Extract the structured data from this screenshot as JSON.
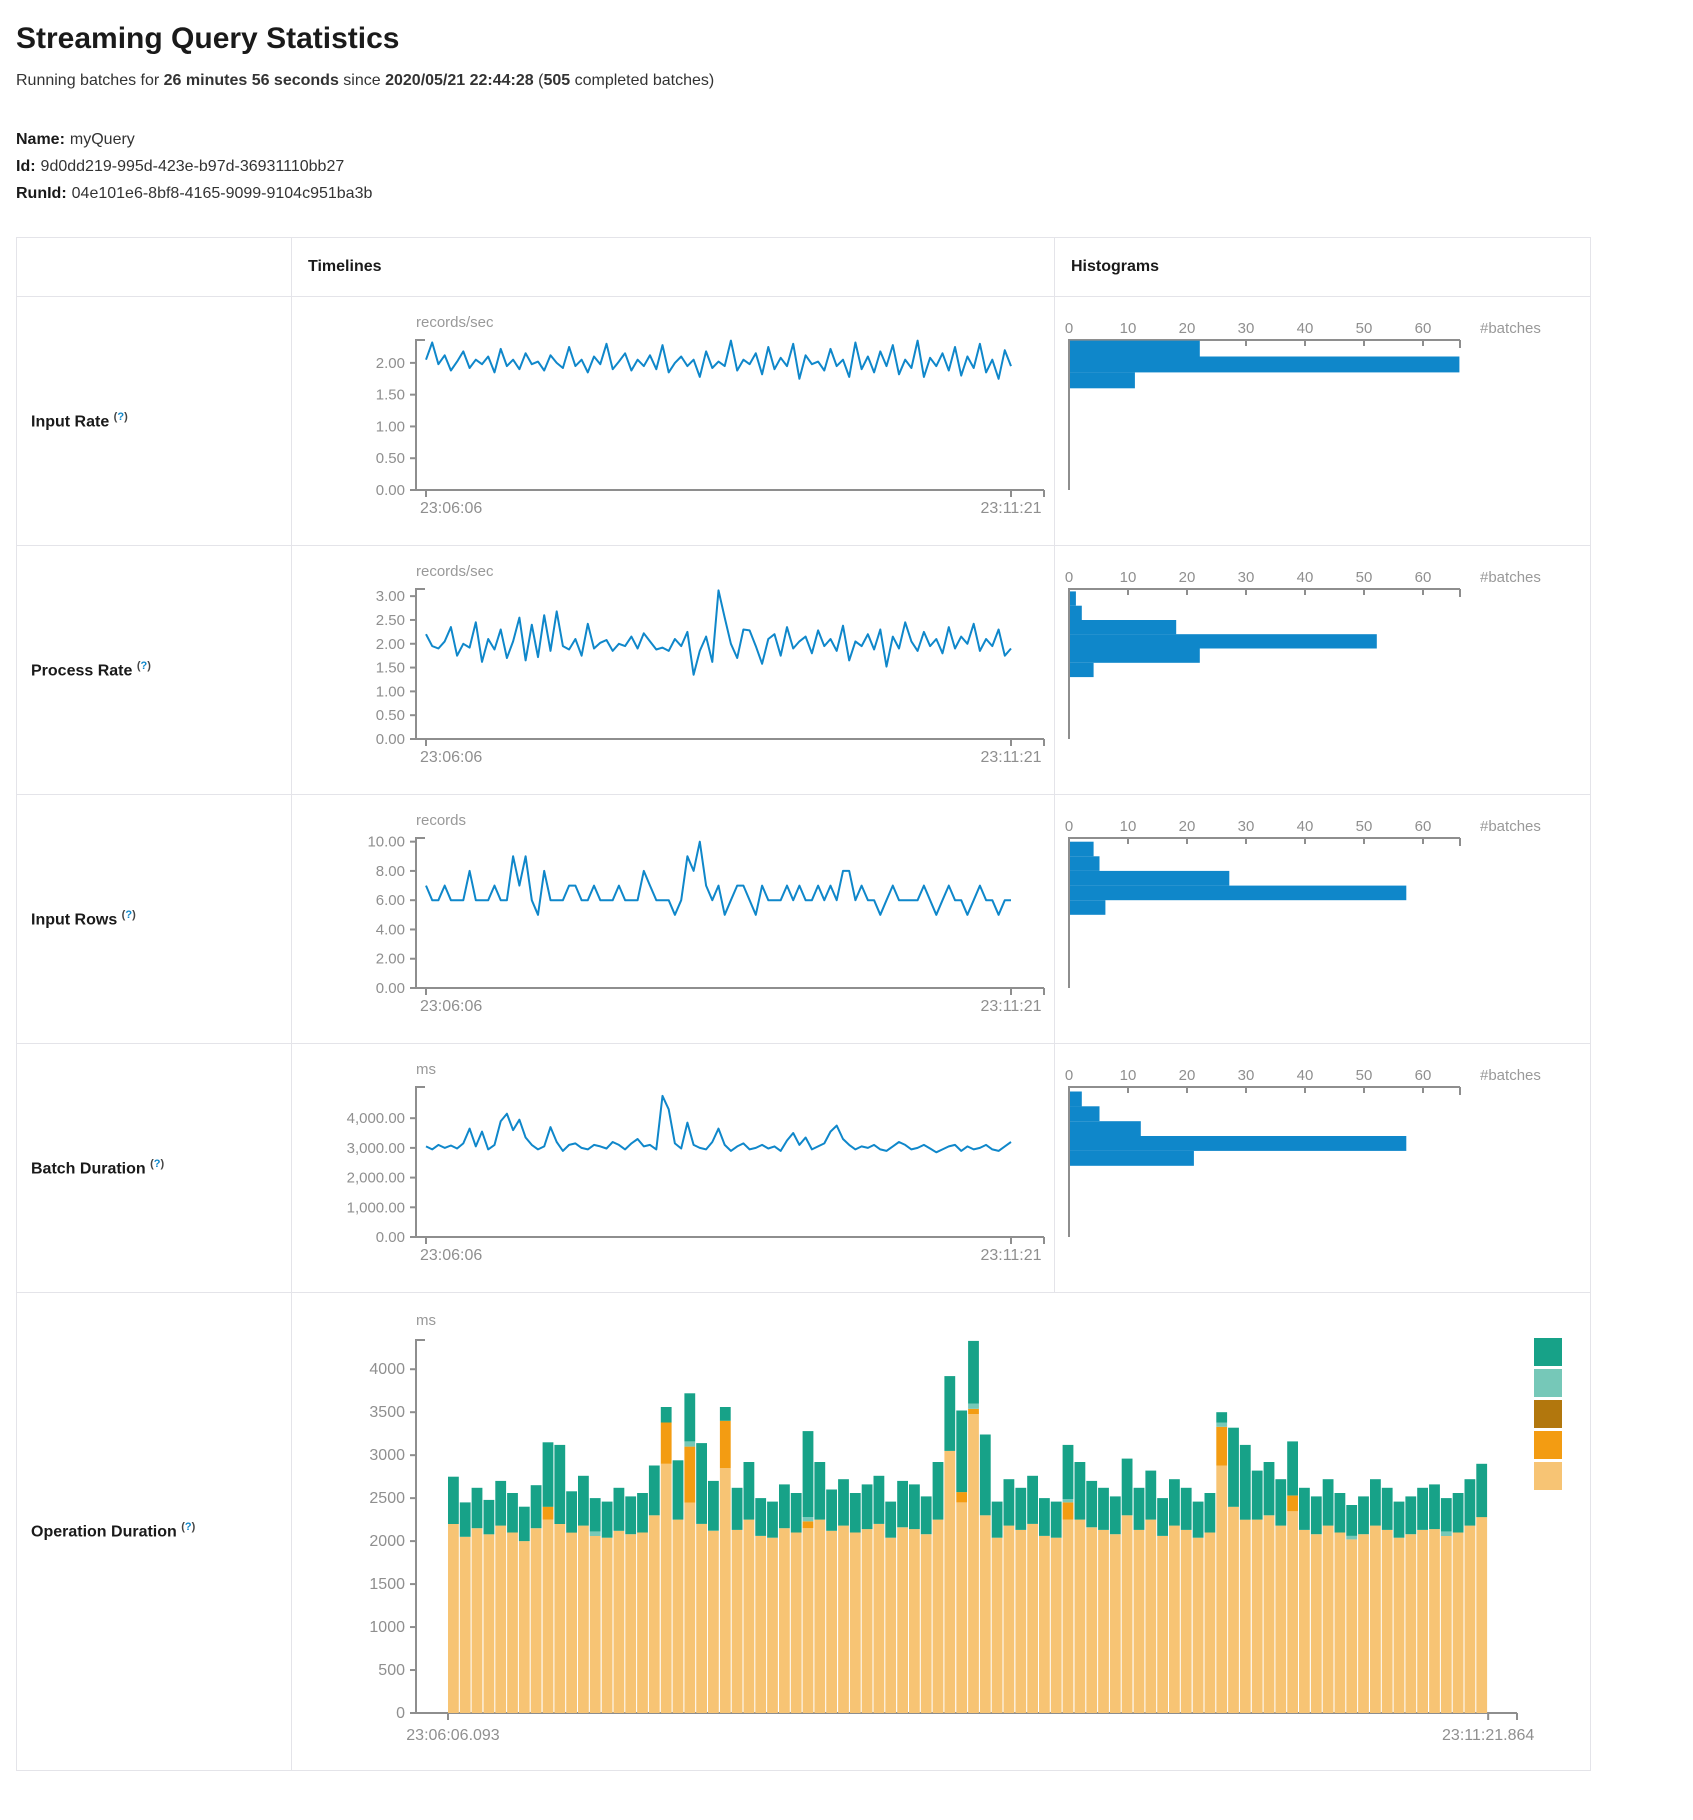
{
  "page": {
    "title": "Streaming Query Statistics",
    "subtitle": {
      "p1": "Running batches for ",
      "duration": "26 minutes 56 seconds",
      "p2": " since ",
      "since": "2020/05/21 22:44:28",
      "p3": " (",
      "batches": "505",
      "p4": " completed batches)"
    },
    "meta": [
      {
        "label": "Name:",
        "value": "myQuery"
      },
      {
        "label": "Id:",
        "value": "9d0dd219-995d-423e-b97d-36931110bb27"
      },
      {
        "label": "RunId:",
        "value": "04e101e6-8bf8-4165-9099-9104c951ba3b"
      }
    ]
  },
  "table": {
    "col_timelines": "Timelines",
    "col_histograms": "Histograms",
    "help": {
      "open": "(",
      "q": "?",
      "close": ")"
    }
  },
  "colors": {
    "blue": "#0f87ca",
    "axis": "#8e8e8e",
    "tick_text": "#8f8f8f",
    "muted": "#999999",
    "teal": "#17a288",
    "lightteal": "#76c8b8",
    "gold": "#b2770d",
    "orange": "#f39c12",
    "tan": "#f7c474",
    "border": "#e4e4e9"
  },
  "chart_data": [
    {
      "id": "input-rate",
      "title": "Input Rate",
      "type": "line",
      "unit": "records/sec",
      "ylim": [
        0,
        2.36
      ],
      "ytick_values": [
        0,
        0.5,
        1,
        1.5,
        2
      ],
      "ytick_labels": [
        "0.00",
        "0.50",
        "1.00",
        "1.50",
        "2.00"
      ],
      "x_start": "23:06:06",
      "x_end": "23:11:21",
      "values": [
        2.05,
        2.32,
        1.98,
        2.12,
        1.88,
        2.02,
        2.18,
        1.92,
        2.05,
        1.98,
        2.1,
        1.85,
        2.22,
        1.95,
        2.05,
        1.9,
        2.15,
        1.98,
        2.02,
        1.88,
        2.12,
        2.0,
        1.92,
        2.25,
        1.95,
        2.05,
        1.85,
        2.1,
        1.98,
        2.3,
        1.9,
        2.02,
        2.15,
        1.88,
        2.05,
        1.95,
        2.12,
        1.9,
        2.28,
        1.85,
        2.0,
        2.1,
        1.95,
        2.05,
        1.78,
        2.18,
        1.92,
        2.02,
        1.95,
        2.35,
        1.88,
        2.05,
        1.98,
        2.15,
        1.82,
        2.25,
        1.9,
        2.08,
        1.95,
        2.3,
        1.75,
        2.12,
        1.98,
        2.02,
        1.88,
        2.22,
        1.95,
        2.05,
        1.78,
        2.32,
        1.9,
        2.1,
        1.85,
        2.18,
        1.95,
        2.28,
        1.82,
        2.05,
        1.92,
        2.35,
        1.78,
        2.08,
        1.95,
        2.15,
        1.88,
        2.25,
        1.8,
        2.1,
        1.92,
        2.3,
        1.85,
        2.05,
        1.75,
        2.2,
        1.95
      ],
      "histogram": {
        "xlabel": "#batches",
        "xtick_values": [
          0,
          10,
          20,
          30,
          40,
          50,
          60
        ],
        "xtick_labels": [
          "0",
          "10",
          "20",
          "30",
          "40",
          "50",
          "60"
        ],
        "bins": [
          {
            "lo": 2.1,
            "hi": 2.35,
            "count": 22
          },
          {
            "lo": 1.85,
            "hi": 2.1,
            "count": 66
          },
          {
            "lo": 1.6,
            "hi": 1.85,
            "count": 11
          }
        ]
      }
    },
    {
      "id": "process-rate",
      "title": "Process Rate",
      "type": "line",
      "unit": "records/sec",
      "ylim": [
        0,
        3.15
      ],
      "ytick_values": [
        0,
        0.5,
        1,
        1.5,
        2,
        2.5,
        3
      ],
      "ytick_labels": [
        "0.00",
        "0.50",
        "1.00",
        "1.50",
        "2.00",
        "2.50",
        "3.00"
      ],
      "x_start": "23:06:06",
      "x_end": "23:11:21",
      "values": [
        2.2,
        1.95,
        1.9,
        2.05,
        2.35,
        1.75,
        2.0,
        1.92,
        2.45,
        1.62,
        2.1,
        1.88,
        2.3,
        1.7,
        2.05,
        2.55,
        1.65,
        2.4,
        1.72,
        2.6,
        1.85,
        2.68,
        1.95,
        1.88,
        2.1,
        1.75,
        2.42,
        1.9,
        2.02,
        2.08,
        1.85,
        2.0,
        1.95,
        2.15,
        1.9,
        2.22,
        2.05,
        1.88,
        1.92,
        1.85,
        2.1,
        1.95,
        2.25,
        1.35,
        1.85,
        2.15,
        1.62,
        3.12,
        2.55,
        2.0,
        1.7,
        2.3,
        2.28,
        1.95,
        1.58,
        2.1,
        2.2,
        1.75,
        2.35,
        1.9,
        2.05,
        2.15,
        1.8,
        2.28,
        1.95,
        2.1,
        1.85,
        2.38,
        1.65,
        2.05,
        1.95,
        2.2,
        1.88,
        2.3,
        1.52,
        2.15,
        1.9,
        2.45,
        2.05,
        1.85,
        2.25,
        1.95,
        2.1,
        1.8,
        2.35,
        1.9,
        2.15,
        2.0,
        2.42,
        1.85,
        2.1,
        1.95,
        2.3,
        1.75,
        1.9
      ],
      "histogram": {
        "xlabel": "#batches",
        "xtick_values": [
          0,
          10,
          20,
          30,
          40,
          50,
          60
        ],
        "xtick_labels": [
          "0",
          "10",
          "20",
          "30",
          "40",
          "50",
          "60"
        ],
        "bins": [
          {
            "lo": 2.8,
            "hi": 3.1,
            "count": 1
          },
          {
            "lo": 2.5,
            "hi": 2.8,
            "count": 2
          },
          {
            "lo": 2.2,
            "hi": 2.5,
            "count": 18
          },
          {
            "lo": 1.9,
            "hi": 2.2,
            "count": 52
          },
          {
            "lo": 1.6,
            "hi": 1.9,
            "count": 22
          },
          {
            "lo": 1.3,
            "hi": 1.6,
            "count": 4
          }
        ]
      }
    },
    {
      "id": "input-rows",
      "title": "Input Rows",
      "type": "line",
      "unit": "records",
      "ylim": [
        0,
        10.25
      ],
      "ytick_values": [
        0,
        2,
        4,
        6,
        8,
        10
      ],
      "ytick_labels": [
        "0.00",
        "2.00",
        "4.00",
        "6.00",
        "8.00",
        "10.00"
      ],
      "x_start": "23:06:06",
      "x_end": "23:11:21",
      "values": [
        7,
        6,
        6,
        7,
        6,
        6,
        6,
        8,
        6,
        6,
        6,
        7,
        6,
        6,
        9,
        7,
        9,
        6,
        5,
        8,
        6,
        6,
        6,
        7,
        7,
        6,
        6,
        7,
        6,
        6,
        6,
        7,
        6,
        6,
        6,
        8,
        7,
        6,
        6,
        6,
        5,
        6,
        9,
        8,
        10,
        7,
        6,
        7,
        5,
        6,
        7,
        7,
        6,
        5,
        7,
        6,
        6,
        6,
        7,
        6,
        7,
        6,
        6,
        7,
        6,
        7,
        6,
        8,
        8,
        6,
        7,
        6,
        6,
        5,
        6,
        7,
        6,
        6,
        6,
        6,
        7,
        6,
        5,
        6,
        7,
        6,
        6,
        5,
        6,
        7,
        6,
        6,
        5,
        6,
        6
      ],
      "histogram": {
        "xlabel": "#batches",
        "xtick_values": [
          0,
          10,
          20,
          30,
          40,
          50,
          60
        ],
        "xtick_labels": [
          "0",
          "10",
          "20",
          "30",
          "40",
          "50",
          "60"
        ],
        "bins": [
          {
            "lo": 9,
            "hi": 10,
            "count": 4
          },
          {
            "lo": 8,
            "hi": 9,
            "count": 5
          },
          {
            "lo": 7,
            "hi": 8,
            "count": 27
          },
          {
            "lo": 6,
            "hi": 7,
            "count": 57
          },
          {
            "lo": 5,
            "hi": 6,
            "count": 6
          }
        ]
      }
    },
    {
      "id": "batch-duration",
      "title": "Batch Duration",
      "type": "line",
      "unit": "ms",
      "ylim": [
        0,
        5050
      ],
      "ytick_values": [
        0,
        1000,
        2000,
        3000,
        4000
      ],
      "ytick_labels": [
        "0.00",
        "1,000.00",
        "2,000.00",
        "3,000.00",
        "4,000.00"
      ],
      "x_start": "23:06:06",
      "x_end": "23:11:21",
      "values": [
        3050,
        2950,
        3100,
        3000,
        3080,
        2980,
        3150,
        3650,
        3050,
        3550,
        2950,
        3100,
        3900,
        4150,
        3600,
        3950,
        3350,
        3100,
        2950,
        3050,
        3700,
        3200,
        2900,
        3100,
        3150,
        3000,
        2950,
        3100,
        3050,
        2980,
        3200,
        3100,
        2950,
        3150,
        3300,
        3050,
        3100,
        2950,
        4750,
        4300,
        3150,
        2980,
        3850,
        3100,
        3000,
        2950,
        3200,
        3650,
        3100,
        2900,
        3050,
        3150,
        2950,
        3000,
        3100,
        2980,
        3050,
        2900,
        3250,
        3500,
        3100,
        3350,
        2950,
        3050,
        3150,
        3550,
        3750,
        3300,
        3100,
        2950,
        3050,
        3000,
        3100,
        2950,
        2900,
        3050,
        3200,
        3100,
        2950,
        3000,
        3100,
        2980,
        2850,
        2950,
        3050,
        3100,
        2900,
        3050,
        2950,
        3000,
        3100,
        2950,
        2900,
        3050,
        3200
      ],
      "histogram": {
        "xlabel": "#batches",
        "xtick_values": [
          0,
          10,
          20,
          30,
          40,
          50,
          60
        ],
        "xtick_labels": [
          "0",
          "10",
          "20",
          "30",
          "40",
          "50",
          "60"
        ],
        "bins": [
          {
            "lo": 4400,
            "hi": 4900,
            "count": 2
          },
          {
            "lo": 3900,
            "hi": 4400,
            "count": 5
          },
          {
            "lo": 3400,
            "hi": 3900,
            "count": 12
          },
          {
            "lo": 2900,
            "hi": 3400,
            "count": 57
          },
          {
            "lo": 2400,
            "hi": 2900,
            "count": 21
          }
        ]
      }
    },
    {
      "id": "operation-duration",
      "title": "Operation Duration",
      "type": "stacked-bar",
      "unit": "ms",
      "ylim": [
        0,
        4340
      ],
      "ytick_values": [
        0,
        500,
        1000,
        1500,
        2000,
        2500,
        3000,
        3500,
        4000
      ],
      "ytick_labels": [
        "0",
        "500",
        "1000",
        "1500",
        "2000",
        "2500",
        "3000",
        "3500",
        "4000"
      ],
      "x_start": "23:06:06.093",
      "x_end": "23:11:21.864",
      "legend_labels_visible": false,
      "legend_colors": [
        "#17a288",
        "#76c8b8",
        "#b2770d",
        "#f39c12",
        "#f7c474"
      ],
      "series": [
        {
          "name": "stack-segment-tan",
          "color": "#f7c474",
          "values": [
            2200,
            2050,
            2150,
            2080,
            2180,
            2100,
            2000,
            2150,
            2250,
            2200,
            2100,
            2180,
            2060,
            2040,
            2120,
            2080,
            2100,
            2300,
            2900,
            2250,
            2450,
            2200,
            2120,
            2850,
            2130,
            2250,
            2060,
            2040,
            2150,
            2100,
            2150,
            2250,
            2120,
            2180,
            2100,
            2140,
            2200,
            2040,
            2160,
            2140,
            2080,
            2250,
            3050,
            2450,
            3480,
            2300,
            2040,
            2180,
            2130,
            2200,
            2060,
            2040,
            2250,
            2250,
            2160,
            2130,
            2080,
            2300,
            2130,
            2250,
            2060,
            2180,
            2130,
            2040,
            2100,
            2880,
            2400,
            2250,
            2250,
            2300,
            2180,
            2350,
            2130,
            2080,
            2180,
            2100,
            2020,
            2080,
            2180,
            2130,
            2040,
            2080,
            2130,
            2140,
            2060,
            2100,
            2180,
            2280
          ]
        },
        {
          "name": "stack-segment-orange",
          "color": "#f39c12",
          "values": [
            0,
            0,
            0,
            0,
            0,
            0,
            0,
            0,
            150,
            0,
            0,
            0,
            0,
            0,
            0,
            0,
            0,
            0,
            480,
            0,
            650,
            0,
            0,
            550,
            0,
            0,
            0,
            0,
            0,
            0,
            80,
            0,
            0,
            0,
            0,
            0,
            0,
            0,
            0,
            0,
            0,
            0,
            0,
            120,
            60,
            0,
            0,
            0,
            0,
            0,
            0,
            0,
            200,
            0,
            0,
            0,
            0,
            0,
            0,
            0,
            0,
            0,
            0,
            0,
            0,
            450,
            0,
            0,
            0,
            0,
            0,
            180,
            0,
            0,
            0,
            0,
            0,
            0,
            0,
            0,
            0,
            0,
            0,
            0,
            0,
            0,
            0,
            0
          ]
        },
        {
          "name": "stack-segment-gold",
          "color": "#b2770d",
          "values": [
            0,
            0,
            0,
            0,
            0,
            0,
            0,
            0,
            0,
            0,
            0,
            0,
            0,
            0,
            0,
            0,
            0,
            0,
            0,
            0,
            0,
            0,
            0,
            0,
            0,
            0,
            0,
            0,
            0,
            0,
            0,
            0,
            0,
            0,
            0,
            0,
            0,
            0,
            0,
            0,
            0,
            0,
            0,
            0,
            0,
            0,
            0,
            0,
            0,
            0,
            0,
            0,
            0,
            0,
            0,
            0,
            0,
            0,
            0,
            0,
            0,
            0,
            0,
            0,
            0,
            0,
            0,
            0,
            0,
            0,
            0,
            0,
            0,
            0,
            0,
            0,
            0,
            0,
            0,
            0,
            0,
            0,
            0,
            0,
            0,
            0,
            0,
            0
          ]
        },
        {
          "name": "stack-segment-lightteal",
          "color": "#76c8b8",
          "values": [
            0,
            0,
            0,
            0,
            0,
            0,
            0,
            0,
            0,
            0,
            0,
            0,
            50,
            0,
            0,
            0,
            0,
            0,
            0,
            0,
            60,
            0,
            0,
            0,
            0,
            0,
            0,
            0,
            0,
            0,
            50,
            0,
            0,
            0,
            0,
            0,
            0,
            0,
            0,
            0,
            0,
            0,
            0,
            0,
            60,
            0,
            0,
            0,
            0,
            0,
            0,
            0,
            40,
            0,
            0,
            0,
            0,
            0,
            0,
            0,
            0,
            0,
            0,
            0,
            0,
            50,
            0,
            0,
            0,
            0,
            0,
            0,
            0,
            0,
            0,
            0,
            40,
            0,
            0,
            0,
            0,
            0,
            0,
            0,
            50,
            0,
            0,
            0
          ]
        },
        {
          "name": "stack-segment-teal",
          "color": "#17a288",
          "values": [
            550,
            400,
            470,
            400,
            520,
            460,
            400,
            500,
            750,
            920,
            480,
            580,
            390,
            420,
            500,
            440,
            460,
            580,
            180,
            690,
            560,
            940,
            580,
            160,
            490,
            670,
            440,
            420,
            510,
            460,
            1000,
            670,
            480,
            540,
            460,
            520,
            560,
            420,
            540,
            520,
            440,
            670,
            870,
            950,
            730,
            940,
            420,
            540,
            490,
            560,
            440,
            420,
            630,
            670,
            540,
            490,
            440,
            660,
            490,
            570,
            440,
            540,
            490,
            420,
            460,
            120,
            920,
            870,
            570,
            620,
            540,
            630,
            490,
            440,
            540,
            460,
            360,
            440,
            540,
            490,
            420,
            440,
            490,
            520,
            390,
            460,
            540,
            620
          ]
        }
      ]
    }
  ]
}
